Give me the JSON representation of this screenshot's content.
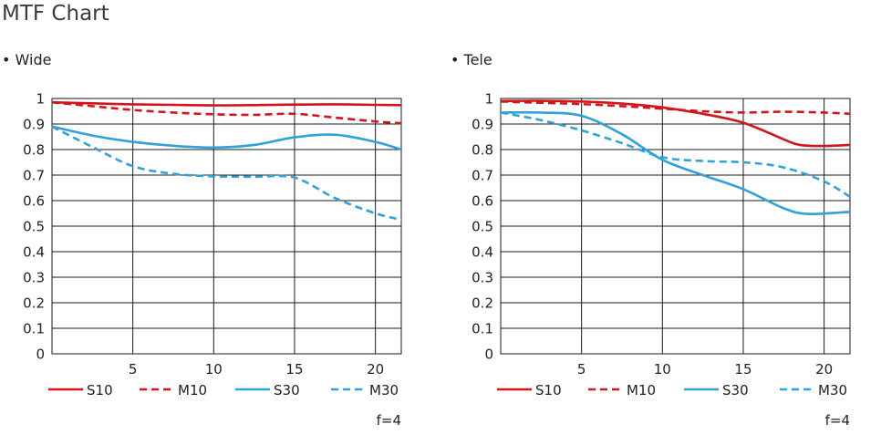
{
  "page": {
    "title": "MTF Chart"
  },
  "colors": {
    "red": "#d3151b",
    "blue": "#2fa2dc",
    "grid": "#1a1a1a"
  },
  "chart_data": [
    {
      "type": "line",
      "subtitle": "• Wide",
      "note": "f=4",
      "xlim": [
        0,
        21.6
      ],
      "ylim": [
        0,
        1
      ],
      "x_ticks": [
        "5",
        "10",
        "15",
        "20"
      ],
      "y_ticks": [
        "0",
        "0.1",
        "0.2",
        "0.3",
        "0.4",
        "0.5",
        "0.6",
        "0.7",
        "0.8",
        "0.9",
        "1"
      ],
      "series": [
        {
          "name": "S10",
          "color": "#d3151b",
          "dashed": false,
          "points": [
            [
              0,
              0.985
            ],
            [
              2.5,
              0.981
            ],
            [
              5,
              0.977
            ],
            [
              7.5,
              0.975
            ],
            [
              10,
              0.973
            ],
            [
              12.5,
              0.974
            ],
            [
              15,
              0.976
            ],
            [
              17.5,
              0.977
            ],
            [
              20,
              0.975
            ],
            [
              21.6,
              0.974
            ]
          ]
        },
        {
          "name": "M10",
          "color": "#d3151b",
          "dashed": true,
          "points": [
            [
              0,
              0.985
            ],
            [
              2.5,
              0.97
            ],
            [
              5,
              0.955
            ],
            [
              7.5,
              0.945
            ],
            [
              10,
              0.938
            ],
            [
              12.5,
              0.936
            ],
            [
              15,
              0.94
            ],
            [
              17.5,
              0.925
            ],
            [
              20,
              0.91
            ],
            [
              21.6,
              0.903
            ]
          ]
        },
        {
          "name": "S30",
          "color": "#2fa2dc",
          "dashed": false,
          "points": [
            [
              0,
              0.89
            ],
            [
              2.5,
              0.855
            ],
            [
              5,
              0.83
            ],
            [
              7.5,
              0.815
            ],
            [
              10,
              0.808
            ],
            [
              12.5,
              0.818
            ],
            [
              15,
              0.848
            ],
            [
              17.5,
              0.858
            ],
            [
              20,
              0.83
            ],
            [
              21.6,
              0.8
            ]
          ]
        },
        {
          "name": "M30",
          "color": "#2fa2dc",
          "dashed": true,
          "points": [
            [
              0,
              0.89
            ],
            [
              2.5,
              0.81
            ],
            [
              5,
              0.735
            ],
            [
              7.5,
              0.705
            ],
            [
              10,
              0.695
            ],
            [
              12.5,
              0.693
            ],
            [
              15,
              0.69
            ],
            [
              17.5,
              0.61
            ],
            [
              20,
              0.55
            ],
            [
              21.6,
              0.525
            ]
          ]
        }
      ]
    },
    {
      "type": "line",
      "subtitle": "• Tele",
      "note": "f=4",
      "xlim": [
        0,
        21.6
      ],
      "ylim": [
        0,
        1
      ],
      "x_ticks": [
        "5",
        "10",
        "15",
        "20"
      ],
      "y_ticks": [
        "0",
        "0.1",
        "0.2",
        "0.3",
        "0.4",
        "0.5",
        "0.6",
        "0.7",
        "0.8",
        "0.9",
        "1"
      ],
      "series": [
        {
          "name": "S10",
          "color": "#d3151b",
          "dashed": false,
          "points": [
            [
              0,
              0.99
            ],
            [
              2.5,
              0.991
            ],
            [
              5,
              0.988
            ],
            [
              7.5,
              0.98
            ],
            [
              10,
              0.965
            ],
            [
              12.5,
              0.94
            ],
            [
              15,
              0.905
            ],
            [
              17.5,
              0.84
            ],
            [
              18.5,
              0.818
            ],
            [
              20,
              0.814
            ],
            [
              21.6,
              0.818
            ]
          ]
        },
        {
          "name": "M10",
          "color": "#d3151b",
          "dashed": true,
          "points": [
            [
              0,
              0.988
            ],
            [
              2.5,
              0.983
            ],
            [
              5,
              0.978
            ],
            [
              7.5,
              0.97
            ],
            [
              10,
              0.96
            ],
            [
              12.5,
              0.95
            ],
            [
              15,
              0.945
            ],
            [
              17.5,
              0.948
            ],
            [
              20,
              0.945
            ],
            [
              21.6,
              0.94
            ]
          ]
        },
        {
          "name": "S30",
          "color": "#2fa2dc",
          "dashed": false,
          "points": [
            [
              0,
              0.945
            ],
            [
              2.5,
              0.945
            ],
            [
              5,
              0.932
            ],
            [
              7.5,
              0.86
            ],
            [
              10,
              0.76
            ],
            [
              12.5,
              0.7
            ],
            [
              15,
              0.645
            ],
            [
              17.5,
              0.57
            ],
            [
              19,
              0.548
            ],
            [
              21.6,
              0.556
            ]
          ]
        },
        {
          "name": "M30",
          "color": "#2fa2dc",
          "dashed": true,
          "points": [
            [
              0,
              0.945
            ],
            [
              2.5,
              0.915
            ],
            [
              5,
              0.875
            ],
            [
              7.5,
              0.825
            ],
            [
              10,
              0.77
            ],
            [
              12.5,
              0.755
            ],
            [
              15,
              0.75
            ],
            [
              17.5,
              0.73
            ],
            [
              20,
              0.675
            ],
            [
              21.6,
              0.615
            ]
          ]
        }
      ]
    }
  ]
}
